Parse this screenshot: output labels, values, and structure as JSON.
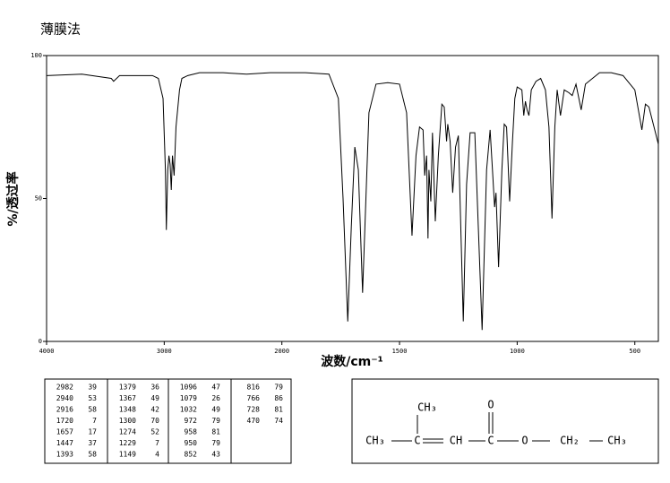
{
  "chart_data": {
    "type": "line",
    "title": "薄膜法",
    "xlabel": "波数/cm⁻¹",
    "ylabel": "%/透过率",
    "color": "#000000",
    "xlim": [
      4000,
      400
    ],
    "xticks": [
      4000,
      3000,
      2000,
      1500,
      1000,
      500
    ],
    "ylim": [
      0,
      100
    ],
    "yticks": [
      0,
      50,
      100
    ],
    "x": [
      4000,
      3700,
      3450,
      3430,
      3380,
      3100,
      3050,
      3010,
      2990,
      2982,
      2970,
      2960,
      2950,
      2940,
      2930,
      2916,
      2900,
      2870,
      2850,
      2800,
      2700,
      2500,
      2300,
      2100,
      2000,
      1900,
      1800,
      1760,
      1740,
      1720,
      1705,
      1690,
      1675,
      1657,
      1645,
      1630,
      1600,
      1550,
      1500,
      1470,
      1447,
      1430,
      1415,
      1400,
      1393,
      1385,
      1379,
      1375,
      1367,
      1360,
      1348,
      1335,
      1320,
      1310,
      1300,
      1295,
      1285,
      1274,
      1262,
      1250,
      1229,
      1215,
      1200,
      1180,
      1149,
      1130,
      1115,
      1105,
      1096,
      1090,
      1079,
      1065,
      1055,
      1045,
      1032,
      1020,
      1010,
      1000,
      980,
      972,
      965,
      958,
      950,
      940,
      920,
      900,
      880,
      865,
      852,
      840,
      830,
      816,
      800,
      780,
      766,
      750,
      728,
      710,
      650,
      600,
      550,
      520,
      500,
      470,
      455,
      440,
      400
    ],
    "values": [
      93,
      93.5,
      92,
      91,
      93,
      93,
      92,
      85,
      60,
      39,
      60,
      65,
      62,
      53,
      65,
      58,
      75,
      88,
      92,
      93,
      94,
      94,
      93.5,
      94,
      94,
      94,
      93.5,
      85,
      50,
      7,
      40,
      68,
      60,
      17,
      45,
      80,
      90,
      90.5,
      90,
      80,
      37,
      65,
      75,
      74,
      58,
      65,
      36,
      60,
      49,
      73,
      42,
      65,
      83,
      82,
      70,
      76,
      70,
      52,
      68,
      72,
      7,
      55,
      73,
      73,
      4,
      60,
      74,
      60,
      47,
      52,
      26,
      60,
      76,
      75,
      49,
      70,
      85,
      89,
      88,
      79,
      84,
      81,
      79,
      88,
      91,
      92,
      88,
      75,
      43,
      75,
      88,
      79,
      88,
      87,
      86,
      90,
      81,
      90,
      94,
      94,
      93,
      90,
      88,
      74,
      83,
      82,
      69
    ],
    "peaks": {
      "wavenumber": [
        2982,
        2940,
        2916,
        1720,
        1657,
        1447,
        1393,
        1379,
        1367,
        1348,
        1300,
        1274,
        1229,
        1149,
        1096,
        1079,
        1032,
        972,
        958,
        950,
        852,
        816,
        766,
        728,
        470
      ],
      "transmittance": [
        39,
        53,
        58,
        7,
        17,
        37,
        58,
        36,
        49,
        42,
        70,
        52,
        7,
        4,
        47,
        26,
        49,
        79,
        81,
        79,
        43,
        79,
        86,
        81,
        74
      ]
    }
  },
  "structure": {
    "branch_methyl": "CH₃",
    "carbonyl_o": "O",
    "chain": [
      "CH₃",
      "C",
      "CH",
      "C",
      "O",
      "CH₂",
      "CH₃"
    ]
  }
}
